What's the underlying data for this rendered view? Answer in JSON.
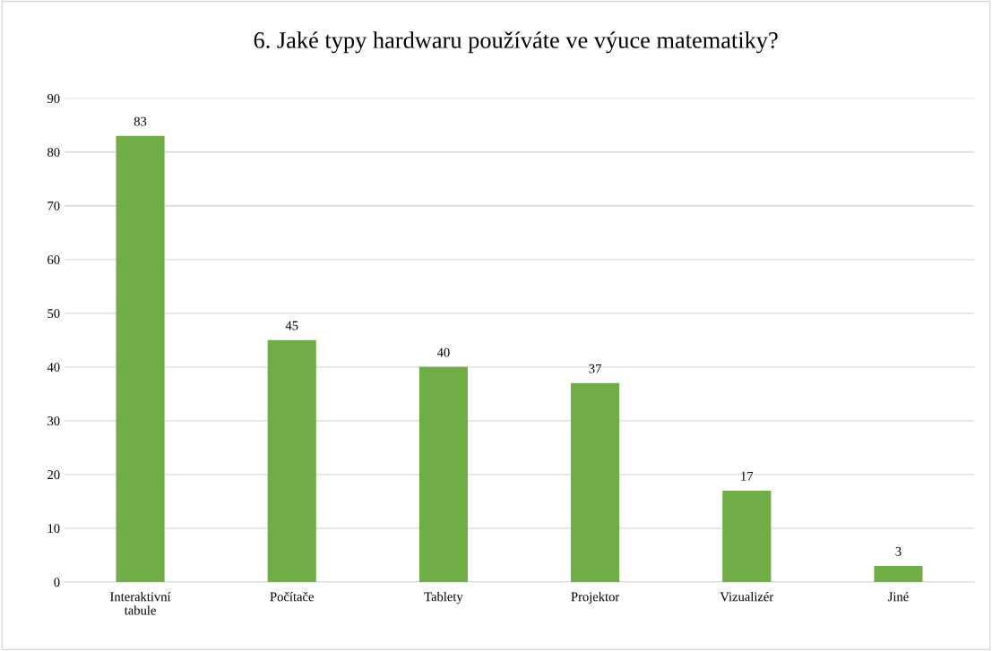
{
  "chart_data": {
    "type": "bar",
    "title": "6. Jaké typy hardwaru používáte ve výuce matematiky?",
    "categories": [
      "Interaktivní tabule",
      "Počítače",
      "Tablety",
      "Projektor",
      "Vizualizér",
      "Jiné"
    ],
    "values": [
      83,
      45,
      40,
      37,
      17,
      3
    ],
    "color": "#70ad47",
    "ylim": [
      0,
      90
    ],
    "yticks": [
      0,
      10,
      20,
      30,
      40,
      50,
      60,
      70,
      80,
      90
    ],
    "grid": "y",
    "data_labels": true
  }
}
